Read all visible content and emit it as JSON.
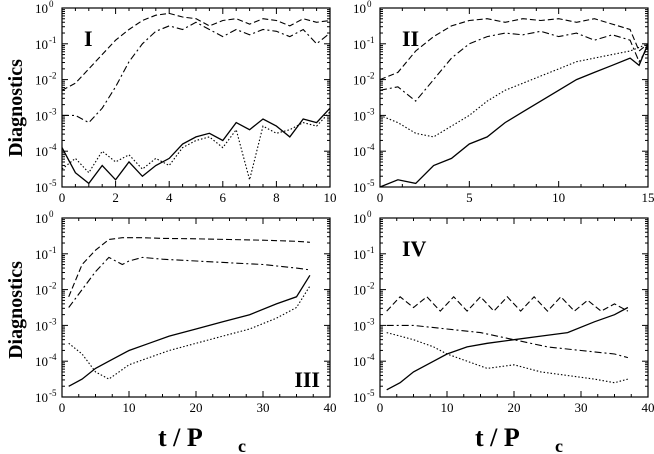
{
  "figure": {
    "ylabel": "Diagnostics",
    "xlabel_main": "t / P",
    "xlabel_sub": "c"
  },
  "chart_data": [
    {
      "type": "line",
      "panel_label": "I",
      "label_pos": "top-left",
      "xlim": [
        0,
        10
      ],
      "xticks": [
        0,
        2,
        4,
        6,
        8,
        10
      ],
      "ylim_exp": [
        -5,
        0
      ],
      "yscale": "log",
      "series": [
        {
          "name": "dashed",
          "style": "dashed",
          "x": [
            0,
            0.5,
            1,
            1.5,
            2,
            2.5,
            3,
            3.5,
            4,
            4.5,
            5,
            5.5,
            6,
            6.5,
            7,
            7.5,
            8,
            8.5,
            9,
            9.5,
            10
          ],
          "log10y": [
            -2.3,
            -2.1,
            -1.7,
            -1.3,
            -0.9,
            -0.6,
            -0.35,
            -0.2,
            -0.15,
            -0.25,
            -0.3,
            -0.5,
            -0.35,
            -0.3,
            -0.45,
            -0.3,
            -0.35,
            -0.5,
            -0.3,
            -0.4,
            -0.35
          ]
        },
        {
          "name": "dash-dot",
          "style": "dashdot",
          "x": [
            0,
            0.5,
            1,
            1.5,
            2,
            2.5,
            3,
            3.5,
            4,
            4.5,
            5,
            5.5,
            6,
            6.5,
            7,
            7.5,
            8,
            8.5,
            9,
            9.5,
            10
          ],
          "log10y": [
            -3,
            -3,
            -3.2,
            -2.8,
            -2.2,
            -1.5,
            -1,
            -0.65,
            -0.5,
            -0.6,
            -0.4,
            -0.6,
            -0.8,
            -0.6,
            -0.75,
            -0.6,
            -0.65,
            -0.8,
            -0.6,
            -1,
            -0.7
          ]
        },
        {
          "name": "solid",
          "style": "solid",
          "x": [
            0,
            0.5,
            1,
            1.5,
            2,
            2.5,
            3,
            3.5,
            4,
            4.5,
            5,
            5.5,
            6,
            6.5,
            7,
            7.5,
            8,
            8.5,
            9,
            9.5,
            10
          ],
          "log10y": [
            -3.9,
            -4.6,
            -4.9,
            -4.4,
            -4.8,
            -4.3,
            -4.7,
            -4.4,
            -4.2,
            -3.8,
            -3.6,
            -3.5,
            -3.7,
            -3.2,
            -3.4,
            -3.1,
            -3.3,
            -3.6,
            -3.1,
            -3.2,
            -2.8
          ]
        },
        {
          "name": "dotted",
          "style": "dotted",
          "x": [
            0,
            0.5,
            1,
            1.5,
            2,
            2.5,
            3,
            3.5,
            4,
            4.5,
            5,
            5.5,
            6,
            6.5,
            7,
            7.5,
            8,
            8.5,
            9,
            9.5,
            10
          ],
          "log10y": [
            -4.5,
            -4.2,
            -4.6,
            -4,
            -4.3,
            -4.1,
            -4.5,
            -4.2,
            -4.4,
            -3.9,
            -3.7,
            -3.6,
            -3.9,
            -3.4,
            -4.8,
            -3.3,
            -3.5,
            -3.4,
            -3.2,
            -3.3,
            -2.9
          ]
        }
      ]
    },
    {
      "type": "line",
      "panel_label": "II",
      "label_pos": "top-left",
      "xlim": [
        0,
        15
      ],
      "xticks": [
        0,
        5,
        10,
        15
      ],
      "ylim_exp": [
        -5,
        0
      ],
      "yscale": "log",
      "series": [
        {
          "name": "dashed",
          "style": "dashed",
          "x": [
            0,
            1,
            2,
            3,
            4,
            5,
            6,
            7,
            8,
            9,
            10,
            11,
            12,
            13,
            14,
            14.5,
            15
          ],
          "log10y": [
            -2,
            -1.8,
            -1.2,
            -0.8,
            -0.5,
            -0.35,
            -0.3,
            -0.4,
            -0.3,
            -0.35,
            -0.3,
            -0.4,
            -0.3,
            -0.45,
            -0.6,
            -1.2,
            -1
          ]
        },
        {
          "name": "dash-dot",
          "style": "dashdot",
          "x": [
            0,
            1,
            2,
            3,
            4,
            5,
            6,
            7,
            8,
            9,
            10,
            11,
            12,
            13,
            14,
            14.5,
            15
          ],
          "log10y": [
            -2.3,
            -2.2,
            -2.6,
            -2,
            -1.4,
            -1,
            -0.8,
            -0.7,
            -0.75,
            -0.65,
            -0.8,
            -0.7,
            -0.9,
            -0.75,
            -0.9,
            -1.5,
            -1.1
          ]
        },
        {
          "name": "solid",
          "style": "solid",
          "x": [
            0,
            1,
            2,
            3,
            4,
            5,
            6,
            7,
            8,
            9,
            10,
            11,
            12,
            13,
            14,
            14.5,
            15
          ],
          "log10y": [
            -5,
            -4.8,
            -4.9,
            -4.4,
            -4.2,
            -3.8,
            -3.6,
            -3.2,
            -2.9,
            -2.6,
            -2.3,
            -2,
            -1.8,
            -1.6,
            -1.4,
            -1.6,
            -1
          ]
        },
        {
          "name": "dotted",
          "style": "dotted",
          "x": [
            0,
            1,
            2,
            3,
            4,
            5,
            6,
            7,
            8,
            9,
            10,
            11,
            12,
            13,
            14,
            14.5,
            15
          ],
          "log10y": [
            -3,
            -3.2,
            -3.5,
            -3.6,
            -3.3,
            -3,
            -2.6,
            -2.3,
            -2.1,
            -1.9,
            -1.7,
            -1.5,
            -1.4,
            -1.3,
            -1.2,
            -1.1,
            -1
          ]
        }
      ]
    },
    {
      "type": "line",
      "panel_label": "III",
      "label_pos": "bottom-right",
      "xlim": [
        0,
        40
      ],
      "xticks": [
        0,
        10,
        20,
        30,
        40
      ],
      "ylim_exp": [
        -5,
        0
      ],
      "yscale": "log",
      "series": [
        {
          "name": "dashed",
          "style": "dashed",
          "x": [
            1,
            3,
            5,
            7,
            9,
            12,
            15,
            20,
            25,
            30,
            35,
            37
          ],
          "log10y": [
            -2.2,
            -1.3,
            -0.9,
            -0.6,
            -0.55,
            -0.55,
            -0.57,
            -0.58,
            -0.6,
            -0.62,
            -0.65,
            -0.68
          ]
        },
        {
          "name": "dash-dot",
          "style": "dashdot",
          "x": [
            1,
            3,
            5,
            7,
            9,
            10,
            12,
            15,
            20,
            25,
            30,
            35,
            37
          ],
          "log10y": [
            -2.5,
            -2,
            -1.5,
            -1.1,
            -1.3,
            -1.2,
            -1.1,
            -1.15,
            -1.2,
            -1.25,
            -1.3,
            -1.4,
            -1.45
          ]
        },
        {
          "name": "solid",
          "style": "solid",
          "x": [
            1,
            3,
            5,
            7,
            10,
            13,
            16,
            20,
            24,
            28,
            32,
            35,
            37
          ],
          "log10y": [
            -4.7,
            -4.5,
            -4.2,
            -4,
            -3.7,
            -3.5,
            -3.3,
            -3.1,
            -2.9,
            -2.7,
            -2.4,
            -2.2,
            -1.6
          ]
        },
        {
          "name": "dotted",
          "style": "dotted",
          "x": [
            1,
            3,
            5,
            7,
            10,
            13,
            16,
            20,
            24,
            28,
            32,
            35,
            37
          ],
          "log10y": [
            -3.5,
            -3.8,
            -4.3,
            -4.5,
            -4.1,
            -3.9,
            -3.7,
            -3.5,
            -3.3,
            -3.1,
            -2.8,
            -2.5,
            -1.9
          ]
        }
      ]
    },
    {
      "type": "line",
      "panel_label": "IV",
      "label_pos": "top-left",
      "xlim": [
        0,
        40
      ],
      "xticks": [
        0,
        10,
        20,
        30,
        40
      ],
      "ylim_exp": [
        -5,
        0
      ],
      "yscale": "log",
      "series": [
        {
          "name": "dashed",
          "style": "dashed",
          "x": [
            1,
            3,
            5,
            7,
            9,
            11,
            13,
            15,
            17,
            19,
            21,
            23,
            25,
            27,
            29,
            31,
            33,
            35,
            37
          ],
          "log10y": [
            -2.6,
            -2.2,
            -2.5,
            -2.2,
            -2.6,
            -2.2,
            -2.6,
            -2.2,
            -2.6,
            -2.2,
            -2.6,
            -2.2,
            -2.6,
            -2.2,
            -2.6,
            -2.3,
            -2.6,
            -2.4,
            -2.6
          ]
        },
        {
          "name": "dash-dot",
          "style": "dashdot",
          "x": [
            1,
            5,
            10,
            15,
            20,
            25,
            30,
            35,
            37
          ],
          "log10y": [
            -3,
            -3,
            -3.1,
            -3.2,
            -3.4,
            -3.6,
            -3.7,
            -3.8,
            -3.9
          ]
        },
        {
          "name": "solid",
          "style": "solid",
          "x": [
            1,
            3,
            5,
            8,
            10,
            13,
            16,
            20,
            24,
            28,
            32,
            35,
            37
          ],
          "log10y": [
            -4.8,
            -4.6,
            -4.3,
            -4,
            -3.8,
            -3.6,
            -3.5,
            -3.4,
            -3.3,
            -3.2,
            -2.9,
            -2.7,
            -2.5
          ]
        },
        {
          "name": "dotted",
          "style": "dotted",
          "x": [
            1,
            3,
            5,
            8,
            10,
            13,
            16,
            20,
            24,
            28,
            32,
            35,
            37
          ],
          "log10y": [
            -3.2,
            -3.3,
            -3.4,
            -3.6,
            -3.8,
            -4,
            -4.2,
            -4.1,
            -4.3,
            -4.4,
            -4.5,
            -4.6,
            -4.5
          ]
        }
      ]
    }
  ]
}
